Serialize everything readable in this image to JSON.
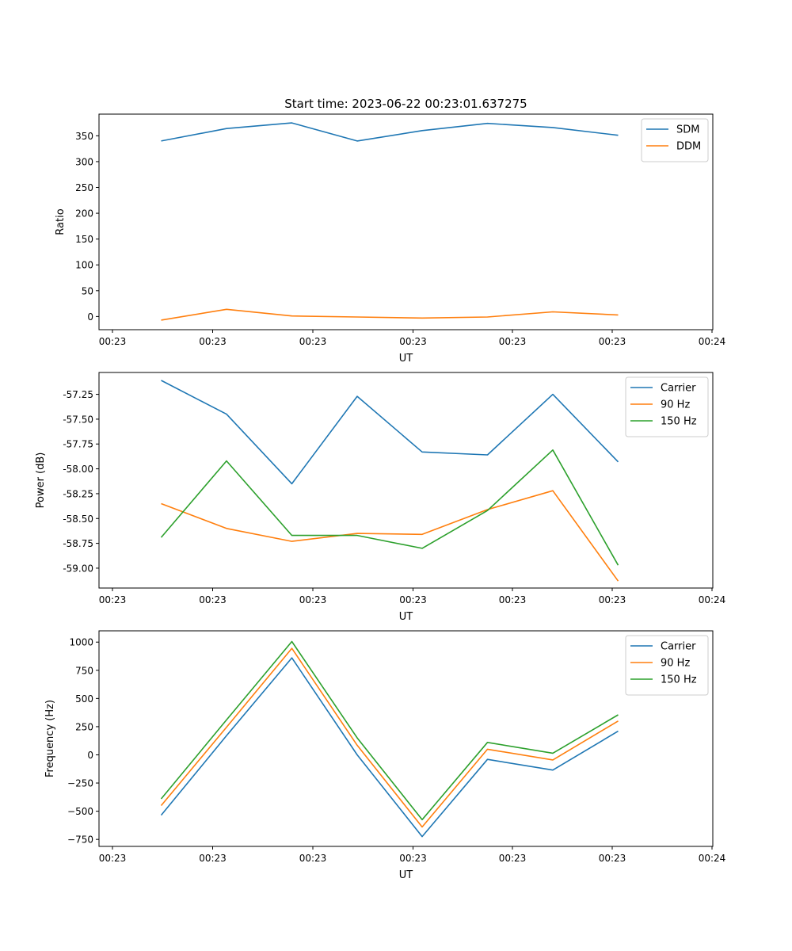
{
  "chart_data": [
    {
      "type": "line",
      "title": "Start time: 2023-06-22 00:23:01.637275",
      "xlabel": "UT",
      "ylabel": "Ratio",
      "xticklabels": [
        "00:23",
        "00:23",
        "00:23",
        "00:23",
        "00:23",
        "00:23",
        "00:24"
      ],
      "yticks": [
        0,
        50,
        100,
        150,
        200,
        250,
        300,
        350
      ],
      "ylim": [
        -25.5,
        392
      ],
      "legend": "top-right",
      "series": [
        {
          "name": "SDM",
          "color": "#1f77b4",
          "values": [
            340,
            364,
            375,
            340,
            360,
            374,
            366,
            351
          ]
        },
        {
          "name": "DDM",
          "color": "#ff7f0e",
          "values": [
            -7,
            14,
            1,
            -1,
            -3,
            -1,
            9,
            3
          ]
        }
      ]
    },
    {
      "type": "line",
      "title": "",
      "xlabel": "UT",
      "ylabel": "Power (dB)",
      "xticklabels": [
        "00:23",
        "00:23",
        "00:23",
        "00:23",
        "00:23",
        "00:23",
        "00:24"
      ],
      "yticks": [
        "-59.00",
        "-58.75",
        "-58.50",
        "-58.25",
        "-58.00",
        "-57.75",
        "-57.50",
        "-57.25"
      ],
      "ylim": [
        -59.2,
        -57.03
      ],
      "legend": "top-right",
      "series": [
        {
          "name": "Carrier",
          "color": "#1f77b4",
          "values": [
            -57.11,
            -57.45,
            -58.15,
            -57.27,
            -57.83,
            -57.86,
            -57.25,
            -57.93
          ]
        },
        {
          "name": "90 Hz",
          "color": "#ff7f0e",
          "values": [
            -58.35,
            -58.6,
            -58.73,
            -58.65,
            -58.66,
            -58.41,
            -58.22,
            -59.13
          ]
        },
        {
          "name": "150 Hz",
          "color": "#2ca02c",
          "values": [
            -58.69,
            -57.92,
            -58.67,
            -58.67,
            -58.8,
            -58.42,
            -57.81,
            -58.97
          ]
        }
      ]
    },
    {
      "type": "line",
      "title": "",
      "xlabel": "UT",
      "ylabel": "Frequency (Hz)",
      "xticklabels": [
        "00:23",
        "00:23",
        "00:23",
        "00:23",
        "00:23",
        "00:23",
        "00:24"
      ],
      "yticks": [
        "−750",
        "−500",
        "−250",
        "0",
        "250",
        "500",
        "750",
        "1000"
      ],
      "ylim": [
        -812,
        1100
      ],
      "legend": "top-right",
      "series": [
        {
          "name": "Carrier",
          "color": "#1f77b4",
          "values": [
            -535,
            170,
            860,
            0,
            -725,
            -40,
            -135,
            210
          ]
        },
        {
          "name": "90 Hz",
          "color": "#ff7f0e",
          "values": [
            -450,
            245,
            945,
            85,
            -640,
            50,
            -45,
            300
          ]
        },
        {
          "name": "150 Hz",
          "color": "#2ca02c",
          "values": [
            -390,
            310,
            1005,
            150,
            -575,
            110,
            15,
            355
          ]
        }
      ]
    }
  ]
}
